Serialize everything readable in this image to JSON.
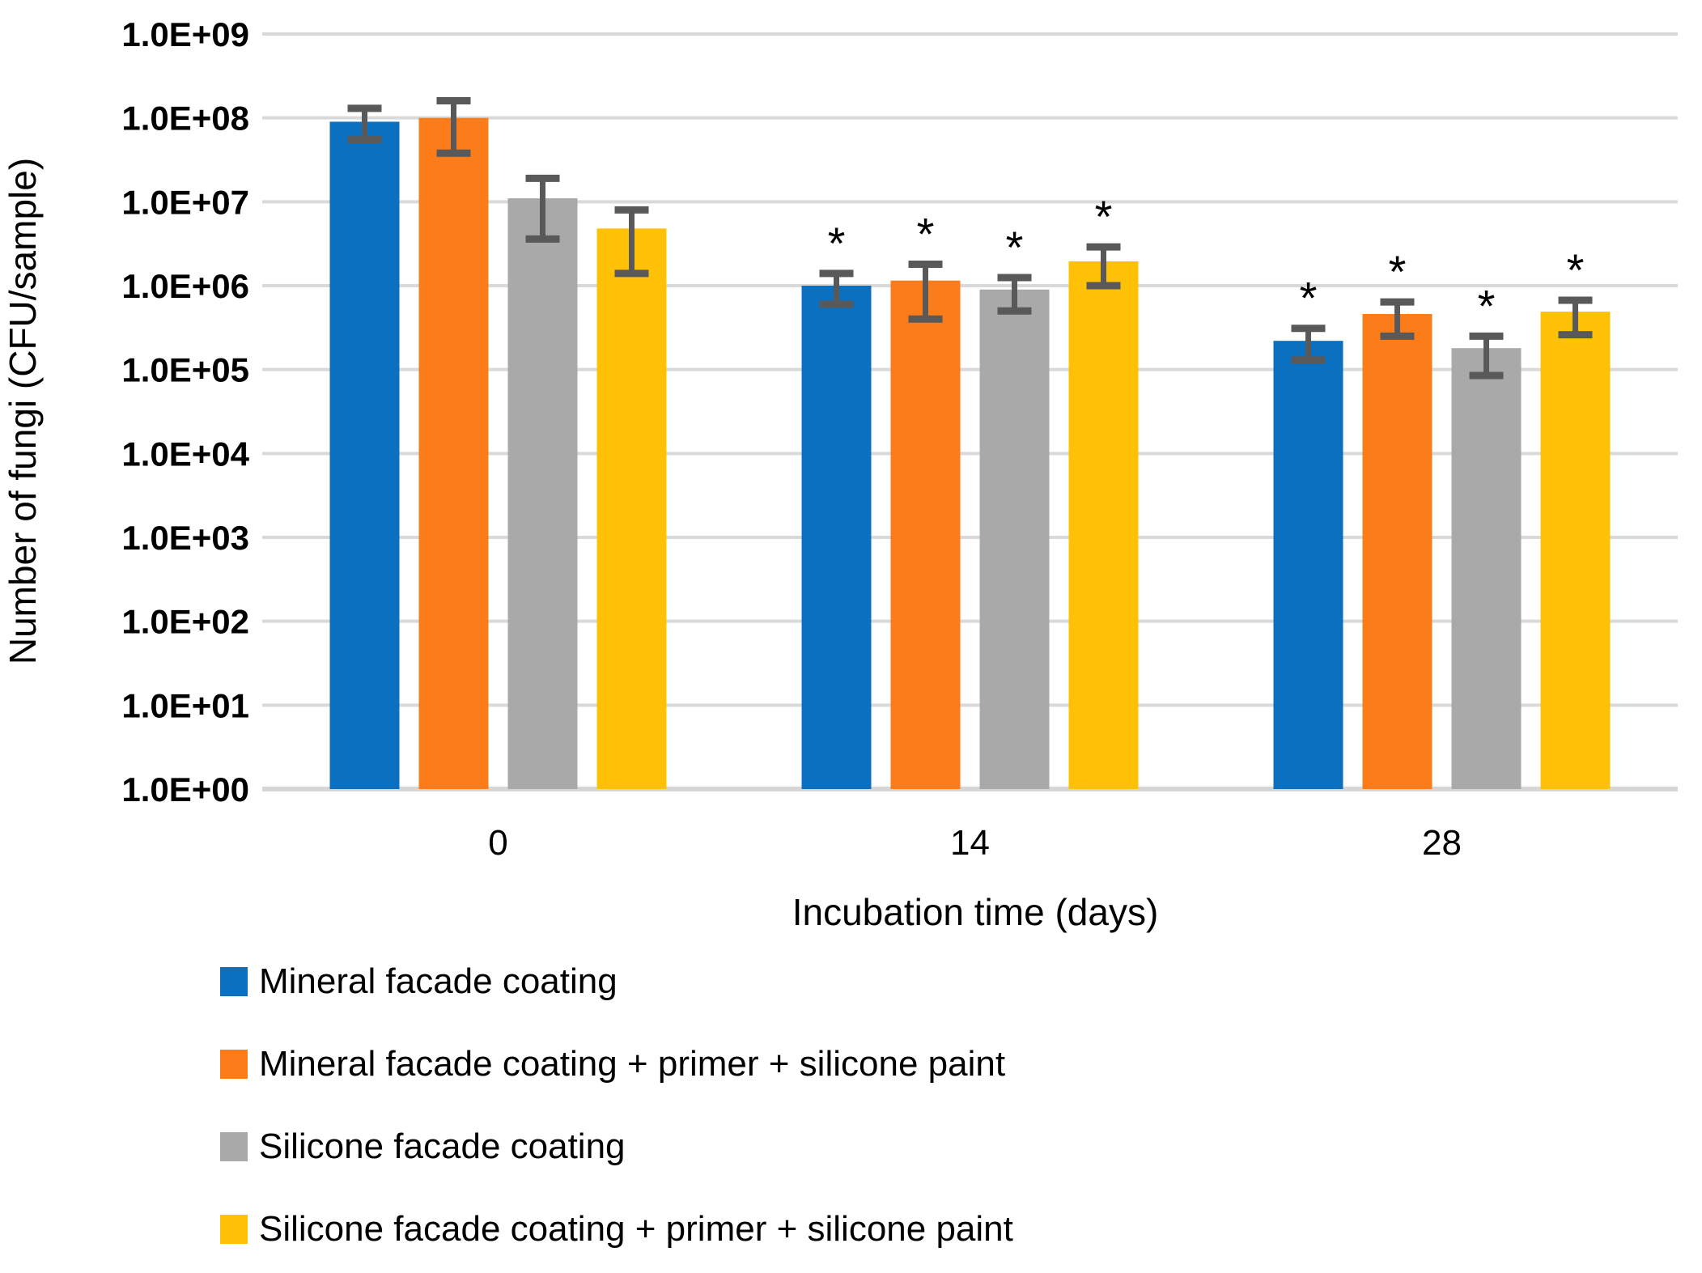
{
  "figure": {
    "description": "Log-scale grouped bar chart of fungal counts on facade coatings over incubation time, with error bars and significance asterisks"
  },
  "chart_data": {
    "type": "bar",
    "title": "",
    "xlabel": "Incubation time (days)",
    "ylabel": "Number of fungi (CFU/sample)",
    "y_scale": "log",
    "ylim": [
      1,
      1000000000
    ],
    "y_tick_labels": [
      "1.0E+09",
      "1.0E+08",
      "1.0E+07",
      "1.0E+06",
      "1.0E+05",
      "1.0E+04",
      "1.0E+03",
      "1.0E+02",
      "1.0E+01",
      "1.0E+00"
    ],
    "categories": [
      "0",
      "14",
      "28"
    ],
    "grid": true,
    "legend_position": "bottom-left",
    "significance_marker": "*",
    "gridline_color": "#d9d9d9",
    "axis_line_color": "#d6d6d6",
    "error_bar_color": "#595959",
    "series": [
      {
        "name": "Mineral facade coating",
        "color": "#0c70c0",
        "values": [
          90000000.0,
          1000000.0,
          220000.0
        ],
        "err_high": [
          130000000.0,
          1400000.0,
          310000.0
        ],
        "err_low": [
          55000000.0,
          600000.0,
          130000.0
        ],
        "significant": [
          false,
          true,
          true
        ]
      },
      {
        "name": "Mineral facade coating + primer + silicone paint",
        "color": "#fb7c18",
        "values": [
          100000000.0,
          1150000.0,
          460000.0
        ],
        "err_high": [
          160000000.0,
          1800000.0,
          640000.0
        ],
        "err_low": [
          38000000.0,
          400000.0,
          250000.0
        ],
        "significant": [
          false,
          true,
          true
        ]
      },
      {
        "name": "Silicone facade coating",
        "color": "#a9a9a9",
        "values": [
          11000000.0,
          900000.0,
          180000.0
        ],
        "err_high": [
          19000000.0,
          1250000.0,
          250000.0
        ],
        "err_low": [
          3600000.0,
          500000.0,
          85000.0
        ],
        "significant": [
          false,
          true,
          true
        ]
      },
      {
        "name": "Silicone facade coating + primer + silicone paint",
        "color": "#ffc105",
        "values": [
          4800000.0,
          1950000.0,
          490000.0
        ],
        "err_high": [
          8000000.0,
          2900000.0,
          670000.0
        ],
        "err_low": [
          1400000.0,
          1000000.0,
          260000.0
        ],
        "significant": [
          false,
          true,
          true
        ]
      }
    ]
  }
}
